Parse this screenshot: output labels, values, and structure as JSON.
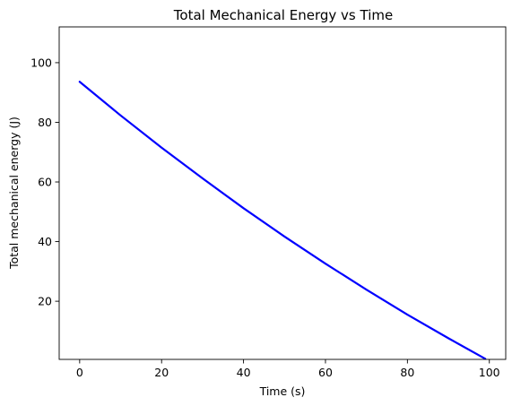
{
  "chart_data": {
    "type": "line",
    "title": "Total Mechanical Energy vs Time",
    "xlabel": "Time (s)",
    "ylabel": "Total mechanical energy (J)",
    "xlim": [
      -5,
      104
    ],
    "ylim": [
      0.5,
      112
    ],
    "xticks": [
      0,
      20,
      40,
      60,
      80,
      100
    ],
    "yticks": [
      20,
      40,
      60,
      80,
      100
    ],
    "grid": false,
    "legend": "none",
    "series": [
      {
        "color": "#0000ff",
        "x": [
          0,
          10,
          20,
          30,
          40,
          50,
          60,
          70,
          80,
          90,
          99
        ],
        "y": [
          93.6,
          82.3,
          71.5,
          61.2,
          51.2,
          41.7,
          32.6,
          23.9,
          15.5,
          7.6,
          0.7
        ]
      }
    ]
  }
}
